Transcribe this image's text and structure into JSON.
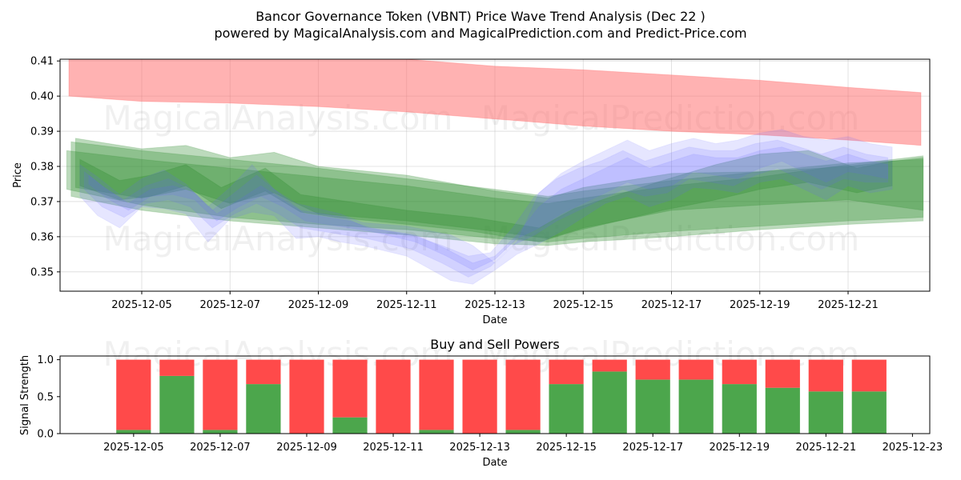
{
  "chart_data": [
    {
      "id": "price",
      "type": "area",
      "title": "Bancor Governance Token (VBNT) Price Wave Trend Analysis (Dec 22 )",
      "subtitle": "powered by MagicalAnalysis.com and MagicalPrediction.com and Predict-Price.com",
      "xlabel": "Date",
      "ylabel": "Price",
      "xlim": [
        -0.85,
        18.85
      ],
      "ylim": [
        0.3445,
        0.4105
      ],
      "yticks": [
        "0.35",
        "0.36",
        "0.37",
        "0.38",
        "0.39",
        "0.40",
        "0.41"
      ],
      "ytick_values": [
        0.35,
        0.36,
        0.37,
        0.38,
        0.39,
        0.4,
        0.41
      ],
      "xticks": [
        "2025-12-05",
        "2025-12-07",
        "2025-12-09",
        "2025-12-11",
        "2025-12-13",
        "2025-12-15",
        "2025-12-17",
        "2025-12-19",
        "2025-12-21"
      ],
      "xtick_values": [
        1,
        3,
        5,
        7,
        9,
        11,
        13,
        15,
        17
      ],
      "grid": true,
      "watermarks": [
        "MagicalAnalysis.com",
        "MagicalPrediction.com"
      ],
      "colors": {
        "red_band": "#ff6666",
        "green_band": "#2e8b2e",
        "blue_band": "#6666ff"
      },
      "series": [
        {
          "name": "resistance-band",
          "color": "red",
          "x": [
            -0.65,
            1,
            3,
            5,
            7,
            9,
            11,
            13,
            15,
            17,
            18.65
          ],
          "lower": [
            0.4,
            0.3985,
            0.398,
            0.397,
            0.3955,
            0.3935,
            0.3915,
            0.39,
            0.389,
            0.3875,
            0.386
          ],
          "upper": [
            0.4105,
            0.4105,
            0.4105,
            0.4105,
            0.4105,
            0.4085,
            0.4075,
            0.406,
            0.4045,
            0.4025,
            0.401
          ]
        },
        {
          "name": "green-band-1",
          "color": "green",
          "x": [
            -0.7,
            1,
            3,
            5,
            7,
            9,
            10.2,
            11,
            13,
            15,
            17,
            18.7
          ],
          "lower": [
            0.3735,
            0.369,
            0.3655,
            0.3635,
            0.362,
            0.3595,
            0.3585,
            0.3595,
            0.3615,
            0.363,
            0.3645,
            0.3655
          ],
          "upper": [
            0.3845,
            0.382,
            0.3795,
            0.377,
            0.3745,
            0.371,
            0.3695,
            0.371,
            0.3745,
            0.377,
            0.3805,
            0.383
          ]
        },
        {
          "name": "green-band-2",
          "color": "green",
          "x": [
            -0.6,
            1,
            3,
            5,
            7,
            9,
            10.2,
            11,
            13,
            15,
            17,
            18.7
          ],
          "lower": [
            0.3715,
            0.3675,
            0.3645,
            0.3625,
            0.3605,
            0.358,
            0.3575,
            0.3585,
            0.36,
            0.362,
            0.3635,
            0.3645
          ],
          "upper": [
            0.387,
            0.3845,
            0.382,
            0.3795,
            0.3765,
            0.3735,
            0.3715,
            0.373,
            0.376,
            0.3785,
            0.381,
            0.382
          ]
        },
        {
          "name": "green-band-3",
          "color": "green",
          "x": [
            -0.5,
            1,
            2,
            3,
            4,
            5,
            7,
            9,
            10.2,
            11,
            13,
            15,
            17,
            18.7
          ],
          "lower": [
            0.374,
            0.371,
            0.3735,
            0.3695,
            0.3725,
            0.3665,
            0.3645,
            0.3615,
            0.3595,
            0.3625,
            0.3675,
            0.369,
            0.3705,
            0.3675
          ],
          "upper": [
            0.388,
            0.385,
            0.386,
            0.3825,
            0.384,
            0.38,
            0.3775,
            0.373,
            0.371,
            0.374,
            0.378,
            0.3785,
            0.38,
            0.3825
          ]
        },
        {
          "name": "green-band-4",
          "color": "green",
          "x": [
            -0.4,
            0.5,
            1.2,
            2,
            2.8,
            3.8,
            4.6,
            5.4,
            7,
            8.5,
            10,
            10.8,
            11.8,
            12.8,
            14,
            15,
            16.1,
            17.2,
            18
          ],
          "lower": [
            0.3745,
            0.3705,
            0.3715,
            0.3745,
            0.368,
            0.373,
            0.367,
            0.3655,
            0.3635,
            0.3615,
            0.3585,
            0.3615,
            0.3645,
            0.3675,
            0.3705,
            0.3735,
            0.3755,
            0.3725,
            0.3745
          ],
          "upper": [
            0.382,
            0.376,
            0.3775,
            0.3805,
            0.374,
            0.3795,
            0.372,
            0.3705,
            0.3675,
            0.3655,
            0.3625,
            0.368,
            0.372,
            0.376,
            0.3805,
            0.3835,
            0.3845,
            0.3795,
            0.3815
          ]
        },
        {
          "name": "blue-band-1",
          "color": "blue",
          "x": [
            -0.4,
            0,
            0.5,
            1,
            1.5,
            2,
            2.5,
            3,
            3.5,
            4,
            4.5,
            5,
            5.5,
            6,
            7,
            8,
            8.5,
            9,
            9.5,
            10,
            10.5,
            11,
            11.5,
            12,
            12.5,
            13,
            13.5,
            14,
            14.5,
            15,
            15.5,
            16,
            16.5,
            17,
            17.5,
            18
          ],
          "lower": [
            0.3715,
            0.366,
            0.3625,
            0.3685,
            0.368,
            0.3665,
            0.3585,
            0.365,
            0.367,
            0.366,
            0.3595,
            0.36,
            0.3585,
            0.3575,
            0.3545,
            0.3475,
            0.3465,
            0.3505,
            0.355,
            0.358,
            0.3615,
            0.3655,
            0.3695,
            0.3715,
            0.3685,
            0.3705,
            0.374,
            0.3735,
            0.3725,
            0.3755,
            0.3765,
            0.3735,
            0.3705,
            0.3745,
            0.3725,
            0.3735
          ],
          "upper": [
            0.3805,
            0.377,
            0.372,
            0.3765,
            0.379,
            0.375,
            0.3685,
            0.374,
            0.3805,
            0.3735,
            0.3695,
            0.368,
            0.3665,
            0.364,
            0.363,
            0.3605,
            0.3575,
            0.3525,
            0.3585,
            0.3725,
            0.378,
            0.3815,
            0.3845,
            0.3875,
            0.3845,
            0.3865,
            0.388,
            0.3865,
            0.3875,
            0.3895,
            0.3905,
            0.3885,
            0.3875,
            0.3885,
            0.3865,
            0.3855
          ]
        },
        {
          "name": "blue-band-2",
          "color": "blue",
          "x": [
            -0.3,
            0.1,
            0.6,
            1.1,
            1.6,
            2.1,
            2.6,
            3.1,
            3.6,
            4.1,
            4.6,
            5.1,
            5.6,
            6.1,
            7.1,
            7.8,
            8.4,
            8.9,
            9.4,
            9.9,
            10.4,
            10.9,
            11.4,
            11.9,
            12.4,
            12.9,
            13.4,
            13.9,
            14.4,
            14.9,
            15.4,
            15.9,
            16.4,
            16.9,
            17.4,
            17.9
          ],
          "lower": [
            0.3735,
            0.3685,
            0.3655,
            0.3695,
            0.3705,
            0.3685,
            0.3625,
            0.3665,
            0.3695,
            0.3665,
            0.3625,
            0.3615,
            0.3605,
            0.3595,
            0.3565,
            0.3525,
            0.3485,
            0.3515,
            0.3575,
            0.3605,
            0.3645,
            0.3675,
            0.3705,
            0.3735,
            0.3715,
            0.3725,
            0.3765,
            0.3755,
            0.3745,
            0.3775,
            0.3795,
            0.3765,
            0.3735,
            0.3765,
            0.3755,
            0.3755
          ],
          "upper": [
            0.3785,
            0.3745,
            0.3705,
            0.3745,
            0.3765,
            0.3735,
            0.3675,
            0.3725,
            0.3775,
            0.3725,
            0.3675,
            0.3665,
            0.3655,
            0.3625,
            0.3605,
            0.3575,
            0.3545,
            0.3555,
            0.3625,
            0.3715,
            0.3765,
            0.3795,
            0.3815,
            0.3845,
            0.3815,
            0.3835,
            0.3855,
            0.3845,
            0.3845,
            0.3865,
            0.3875,
            0.3855,
            0.3835,
            0.3855,
            0.3835,
            0.3825
          ]
        },
        {
          "name": "blue-band-3",
          "color": "blue",
          "x": [
            -0.2,
            0.2,
            0.7,
            1.2,
            1.7,
            2.2,
            2.7,
            3.2,
            3.7,
            4.2,
            4.7,
            5.2,
            5.7,
            6.2,
            7.2,
            7.9,
            8.5,
            9,
            9.5,
            10,
            10.5,
            11,
            11.5,
            12,
            12.5,
            13,
            13.5,
            14,
            14.5,
            15,
            15.5,
            16,
            16.5,
            17,
            17.5,
            17.9
          ],
          "lower": [
            0.375,
            0.371,
            0.3675,
            0.3715,
            0.372,
            0.3705,
            0.3645,
            0.3685,
            0.3715,
            0.3685,
            0.3645,
            0.3635,
            0.3625,
            0.3615,
            0.3585,
            0.3545,
            0.3505,
            0.3535,
            0.3595,
            0.3625,
            0.3665,
            0.3695,
            0.3725,
            0.3755,
            0.3735,
            0.3745,
            0.3785,
            0.3775,
            0.3765,
            0.3795,
            0.3815,
            0.3785,
            0.3755,
            0.3785,
            0.3775,
            0.3765
          ],
          "upper": [
            0.3775,
            0.3735,
            0.3695,
            0.3735,
            0.3745,
            0.3725,
            0.3665,
            0.3705,
            0.3745,
            0.3705,
            0.3665,
            0.3655,
            0.3645,
            0.3625,
            0.3605,
            0.3565,
            0.3525,
            0.3545,
            0.3605,
            0.3685,
            0.3735,
            0.3765,
            0.3795,
            0.3825,
            0.3795,
            0.3815,
            0.3835,
            0.3825,
            0.3825,
            0.3845,
            0.3855,
            0.3835,
            0.3815,
            0.3835,
            0.3815,
            0.3805
          ]
        }
      ]
    },
    {
      "id": "powers",
      "type": "bar",
      "title": "Buy and Sell Powers",
      "xlabel": "Date",
      "ylabel": "Signal Strength",
      "xlim": [
        -0.7,
        19.4
      ],
      "ylim": [
        0,
        1.05
      ],
      "yticks": [
        "0.0",
        "0.5",
        "1.0"
      ],
      "ytick_values": [
        0,
        0.5,
        1.0
      ],
      "xticks": [
        "2025-12-05",
        "2025-12-07",
        "2025-12-09",
        "2025-12-11",
        "2025-12-13",
        "2025-12-15",
        "2025-12-17",
        "2025-12-19",
        "2025-12-21",
        "2025-12-23"
      ],
      "xtick_values": [
        1,
        3,
        5,
        7,
        9,
        11,
        13,
        15,
        17,
        19
      ],
      "colors": {
        "buy": "#4ca64c",
        "sell": "#ff4a4a"
      },
      "x": [
        1,
        2,
        3,
        4,
        5,
        6,
        7,
        8,
        9,
        10,
        11,
        12,
        13,
        14,
        15,
        16,
        17,
        18
      ],
      "series": [
        {
          "name": "Buy",
          "color": "green",
          "values": [
            0.05,
            0.78,
            0.05,
            0.67,
            0.0,
            0.22,
            0.0,
            0.05,
            0.0,
            0.05,
            0.67,
            0.84,
            0.73,
            0.73,
            0.67,
            0.62,
            0.57,
            0.57
          ]
        },
        {
          "name": "Sell",
          "color": "red",
          "values": [
            0.95,
            0.22,
            0.95,
            0.33,
            1.0,
            0.78,
            1.0,
            0.95,
            1.0,
            0.95,
            0.33,
            0.16,
            0.27,
            0.27,
            0.33,
            0.38,
            0.43,
            0.43
          ]
        }
      ]
    }
  ]
}
